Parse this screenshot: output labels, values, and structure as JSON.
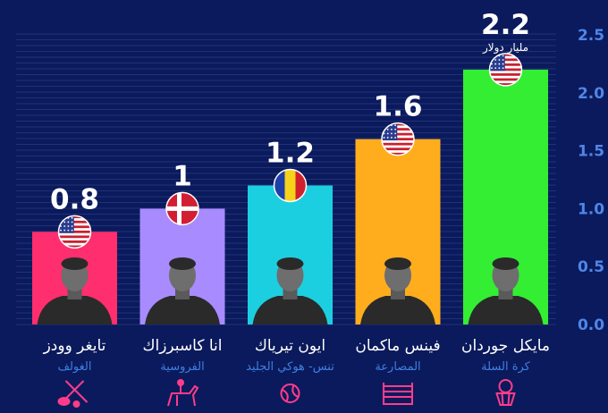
{
  "chart_data": {
    "type": "bar",
    "ylim": [
      0,
      2.5
    ],
    "yticks": [
      "0.0",
      "0.5",
      "1.0",
      "1.5",
      "2.0",
      "2.5"
    ],
    "unit_label": "مليار دولار",
    "bars": [
      {
        "name": "تايغر وودز",
        "sport": "الغولف",
        "value": 0.8,
        "value_label": "0.8",
        "color": "#ff2e6e",
        "flag": "usa",
        "sport_icon": "golf-icon"
      },
      {
        "name": "انا كاسبرزاك",
        "sport": "الفروسية",
        "value": 1.0,
        "value_label": "1",
        "color": "#a78bff",
        "flag": "denmark",
        "sport_icon": "equestrian-icon"
      },
      {
        "name": "ايون تيرياك",
        "sport": "تنس- هوكي الجليد",
        "value": 1.2,
        "value_label": "1.2",
        "color": "#1ccfe0",
        "flag": "romania",
        "sport_icon": "tennis-ball-icon"
      },
      {
        "name": "فينس ماكمان",
        "sport": "المصارعة",
        "value": 1.6,
        "value_label": "1.6",
        "color": "#ffad1c",
        "flag": "usa",
        "sport_icon": "wrestling-ring-icon"
      },
      {
        "name": "مايكل جوردان",
        "sport": "كرة السلة",
        "value": 2.2,
        "value_label": "2.2",
        "color": "#33ee33",
        "flag": "usa",
        "sport_icon": "basketball-hoop-icon"
      }
    ]
  },
  "colors": {
    "background": "#0b1a5c",
    "grid": "#1f3178",
    "axis_text": "#4f86e8",
    "sport_text": "#3f7fe0",
    "icon": "#ff3c8a",
    "name_text": "#ffffff"
  }
}
